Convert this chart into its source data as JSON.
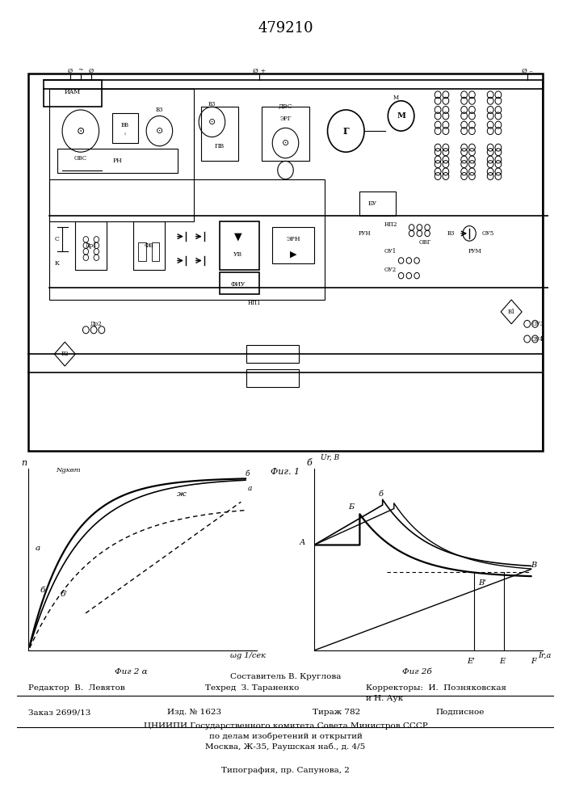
{
  "title": "479210",
  "fig1_caption": "Фиг. 1",
  "fig2a_caption": "Фиг 2 α",
  "fig2b_caption": "Фиг 2б",
  "fig2a_xlabel": "ωg 1/сек",
  "fig2a_n_label": "n",
  "fig2a_ng_label": "Ngквт",
  "fig2b_xlabel": "Ir,а",
  "fig2b_ylabel": "Ur, В",
  "fig2b_delta": "б",
  "footer_sestavitel": "Составитель В. Круглова",
  "footer_redaktor": "Редактор  В.  Левятов",
  "footer_tekhred": "Техред  З. Тараненко",
  "footer_korrektory": "Корректоры:  И.  Позняковская",
  "footer_korrektory2": "и Н. Аук",
  "footer_zakaz": "Заказ 2699/13",
  "footer_izd": "Изд. № 1623",
  "footer_tirazh": "Тираж 782",
  "footer_podpisnoe": "Подписное",
  "footer_tsniipi": "ЦНИИПИ Государственного комитета Совета Министров СССР",
  "footer_po_delam": "по делам изобретений и открытий",
  "footer_moskva": "Москва, Ж-35, Раушская наб., д. 4/5",
  "footer_tipografiya": "Типография, пр. Сапунова, 2"
}
